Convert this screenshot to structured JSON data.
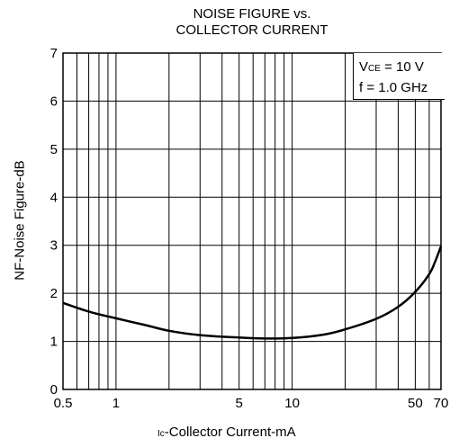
{
  "chart_data": {
    "type": "line",
    "title_line1": "NOISE FIGURE vs.",
    "title_line2": "COLLECTOR CURRENT",
    "xlabel_sub": "Ic",
    "xlabel_rest": "-Collector Current-mA",
    "ylabel": "NF-Noise Figure-dB",
    "x_scale": "log",
    "xlim": [
      0.5,
      70
    ],
    "ylim": [
      0,
      7
    ],
    "grid": true,
    "x_ticks": [
      0.5,
      1,
      5,
      10,
      50,
      70
    ],
    "x_tick_labels": [
      "0.5",
      "1",
      "5",
      "10",
      "50",
      "70"
    ],
    "y_ticks": [
      0,
      1,
      2,
      3,
      4,
      5,
      6,
      7
    ],
    "y_tick_labels": [
      "0",
      "1",
      "2",
      "3",
      "4",
      "5",
      "6",
      "7"
    ],
    "legend_placement": "top-right",
    "conditions": {
      "vce_prefix": "V",
      "vce_sub": "CE",
      "vce_rest": " = 10 V",
      "freq": "f = 1.0 GHz"
    },
    "series": [
      {
        "x": [
          0.5,
          0.7,
          1,
          1.5,
          2,
          3,
          5,
          7,
          10,
          15,
          20,
          30,
          40,
          50,
          60,
          65,
          70
        ],
        "y": [
          1.8,
          1.62,
          1.48,
          1.33,
          1.22,
          1.13,
          1.08,
          1.06,
          1.07,
          1.14,
          1.25,
          1.47,
          1.72,
          2.03,
          2.4,
          2.67,
          2.98
        ]
      }
    ]
  }
}
